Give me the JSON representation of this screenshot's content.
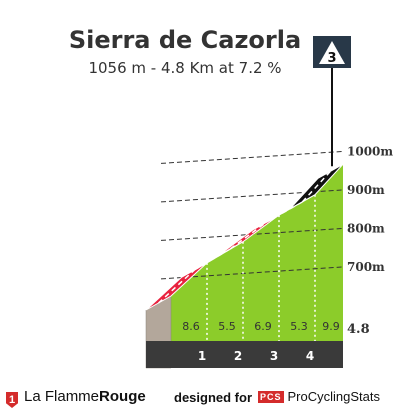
{
  "header": {
    "title": "Sierra de Cazorla",
    "subtitle": "1056 m - 4.8 Km at 7.2 %",
    "category_badge": "3"
  },
  "colors": {
    "grass": "#8ccc2a",
    "base": "#3a3a3a",
    "start_block": "#b3a79b",
    "red": "#e8233f",
    "blue": "#1f6fa8",
    "black": "#111111",
    "badge_bg": "#283848"
  },
  "chart_data": {
    "type": "area",
    "title": "Sierra de Cazorla",
    "subtitle": "1056 m - 4.8 Km at 7.2 %",
    "total_distance_km": 4.8,
    "segments": [
      {
        "km_label": "1",
        "gradient": 8.6,
        "color": "red"
      },
      {
        "km_label": "2",
        "gradient": 5.5,
        "color": "blue"
      },
      {
        "km_label": "3",
        "gradient": 6.9,
        "color": "red"
      },
      {
        "km_label": "4",
        "gradient": 5.3,
        "color": "blue"
      },
      {
        "km_label": "",
        "gradient": 9.9,
        "color": "black"
      }
    ],
    "final_distance_label": "4.8",
    "altitude_labels": [
      "1000m",
      "900m",
      "800m",
      "700m"
    ],
    "altitude_values": [
      1000,
      900,
      800,
      700
    ],
    "summit_altitude_m": 1056,
    "grid": true
  },
  "footer": {
    "brand_prefix": "La Flamme",
    "brand_suffix": "Rouge",
    "brand_logo_text": "1",
    "designed_for": "designed for",
    "pcs_logo": "PCS",
    "pcs_name": "ProCyclingStats"
  }
}
